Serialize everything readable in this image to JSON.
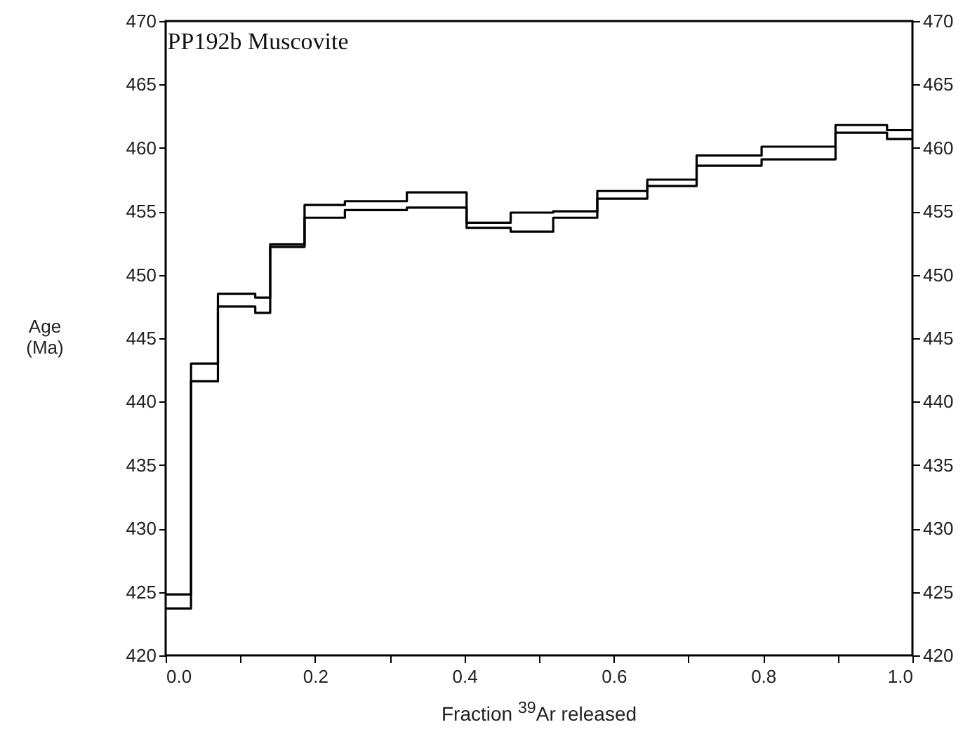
{
  "chart_data": {
    "type": "step",
    "title": "PP192b Muscovite",
    "xlabel": "Fraction $^{39}$Ar released",
    "ylabel": "Age (Ma)",
    "x": [
      0,
      0.034,
      0.07,
      0.12,
      0.14,
      0.186,
      0.24,
      0.323,
      0.403,
      0.462,
      0.519,
      0.578,
      0.645,
      0.711,
      0.798,
      0.897,
      0.966,
      1.0
    ],
    "series": [
      {
        "color": "#000000",
        "values": [
          424.8,
          443.0,
          448.5,
          448.2,
          452.4,
          455.5,
          455.8,
          456.5,
          454.1,
          454.9,
          455.0,
          456.6,
          457.5,
          459.4,
          460.1,
          461.8,
          461.4,
          461.4
        ]
      },
      {
        "color": "#000000",
        "values": [
          423.7,
          441.6,
          447.5,
          447.0,
          452.2,
          454.5,
          455.1,
          455.3,
          453.7,
          453.4,
          454.5,
          456.0,
          457.0,
          458.6,
          459.1,
          461.2,
          460.7,
          460.7
        ]
      }
    ],
    "xlim": [
      0,
      1
    ],
    "xticks": [
      {
        "value": 0,
        "label": "0.0"
      },
      {
        "value": 0.1,
        "label": null
      },
      {
        "value": 0.2,
        "label": "0.2"
      },
      {
        "value": 0.3,
        "label": null
      },
      {
        "value": 0.4,
        "label": "0.4"
      },
      {
        "value": 0.5,
        "label": null
      },
      {
        "value": 0.6,
        "label": "0.6"
      },
      {
        "value": 0.7,
        "label": null
      },
      {
        "value": 0.8,
        "label": "0.8"
      },
      {
        "value": 0.9,
        "label": null
      },
      {
        "value": 1.0,
        "label": "1.0"
      }
    ],
    "ylim": [
      420,
      470
    ],
    "yticks": [
      420,
      425,
      430,
      435,
      440,
      445,
      450,
      455,
      460,
      465,
      470
    ],
    "y2lim": [
      420,
      470
    ],
    "y2ticks": [
      420,
      425,
      430,
      435,
      440,
      445,
      450,
      455,
      460,
      465,
      470
    ],
    "grid": false,
    "marker": "none",
    "line_style": "solid"
  }
}
